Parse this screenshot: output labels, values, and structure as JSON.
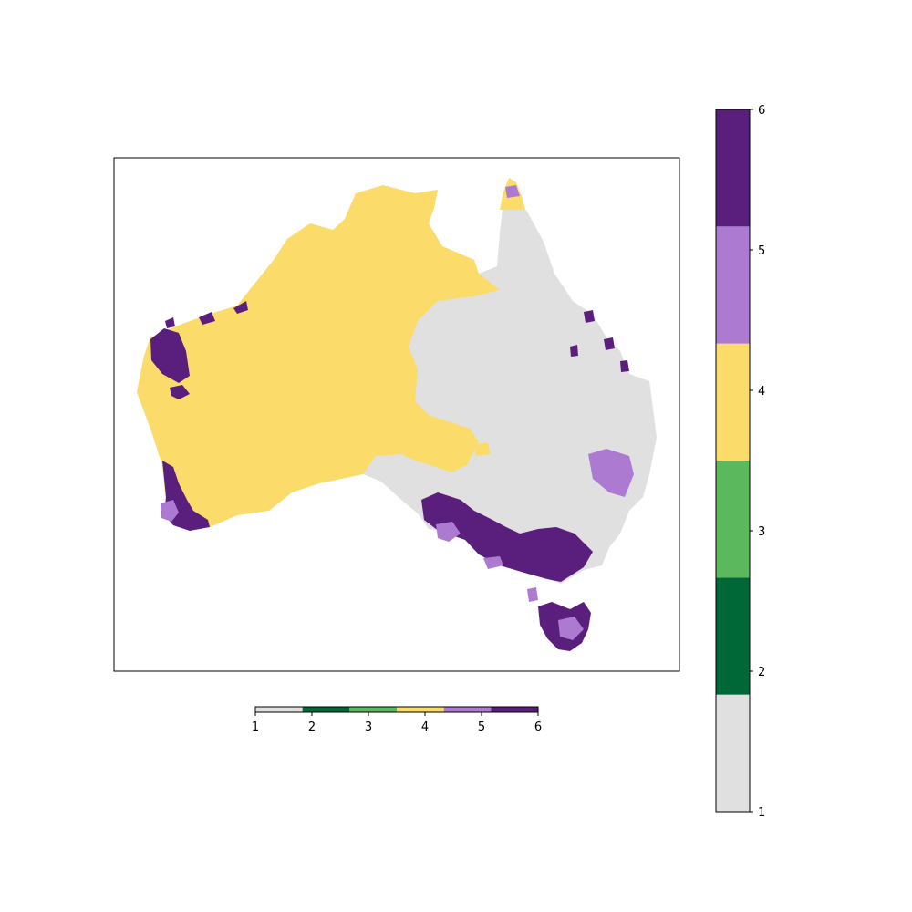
{
  "colors": {
    "class_1": "#e0e0e0",
    "class_2": "#006837",
    "class_3": "#5cb85c",
    "class_4": "#fbdc6a",
    "class_5": "#ad7ad2",
    "class_6": "#5a1f7d",
    "map_frame": "#000000",
    "background": "#ffffff"
  },
  "chart_data": {
    "type": "map",
    "subject": "Australia",
    "colormap": {
      "type": "discrete",
      "classes": [
        {
          "value": 1,
          "color": "#e0e0e0"
        },
        {
          "value": 2,
          "color": "#006837"
        },
        {
          "value": 3,
          "color": "#5cb85c"
        },
        {
          "value": 4,
          "color": "#fbdc6a"
        },
        {
          "value": 5,
          "color": "#ad7ad2"
        },
        {
          "value": 6,
          "color": "#5a1f7d"
        }
      ],
      "range": [
        1,
        6
      ]
    },
    "colorbars": [
      {
        "orientation": "vertical",
        "position": "right",
        "ticks": [
          "1",
          "2",
          "3",
          "4",
          "5",
          "6"
        ]
      },
      {
        "orientation": "horizontal",
        "position": "bottom",
        "ticks": [
          "1",
          "2",
          "3",
          "4",
          "5",
          "6"
        ]
      }
    ],
    "regions": [
      {
        "name": "mainland-west-and-north",
        "class": 4
      },
      {
        "name": "mainland-east",
        "class": 1
      },
      {
        "name": "north-west-coast-patch",
        "class": 6
      },
      {
        "name": "south-west-coast",
        "class": 6
      },
      {
        "name": "south-east-coast",
        "class": 6
      },
      {
        "name": "east-inland-patches",
        "class": 5
      },
      {
        "name": "tasmania",
        "class": 6
      }
    ]
  }
}
